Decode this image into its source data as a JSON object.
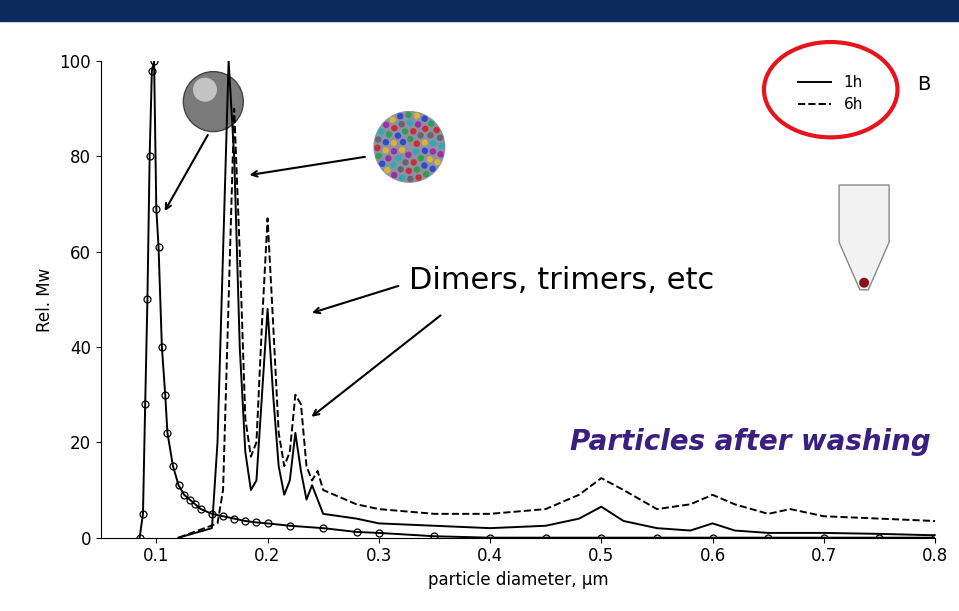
{
  "chart_data": {
    "type": "line",
    "xlabel": "particle diameter, µm",
    "ylabel": "Rel. Mw",
    "xlim": [
      0.05,
      0.8
    ],
    "ylim": [
      0,
      100
    ],
    "xticks": [
      0.1,
      0.2,
      0.3,
      0.4,
      0.5,
      0.6,
      0.7,
      0.8
    ],
    "yticks": [
      0,
      20,
      40,
      60,
      80,
      100
    ],
    "legend": "upper right",
    "annotations": [
      "B",
      "Dimers, trimers, etc",
      "Particles after washing"
    ],
    "series": [
      {
        "name": "1h",
        "color": "#000000",
        "line_style": "solid",
        "x": [
          0.12,
          0.15,
          0.155,
          0.16,
          0.165,
          0.17,
          0.175,
          0.18,
          0.185,
          0.19,
          0.195,
          0.2,
          0.205,
          0.21,
          0.215,
          0.22,
          0.225,
          0.23,
          0.235,
          0.24,
          0.245,
          0.25,
          0.28,
          0.3,
          0.35,
          0.4,
          0.45,
          0.48,
          0.5,
          0.52,
          0.55,
          0.58,
          0.6,
          0.62,
          0.65,
          0.7,
          0.75,
          0.8
        ],
        "values": [
          0,
          2,
          20,
          60,
          100,
          80,
          40,
          18,
          10,
          12,
          30,
          48,
          30,
          15,
          9,
          12,
          22,
          14,
          8,
          11,
          8,
          5,
          4,
          3,
          2.5,
          2,
          2.5,
          4,
          6.5,
          3.5,
          2,
          1.5,
          3,
          1.5,
          1,
          1,
          0.8,
          0.5
        ]
      },
      {
        "name": "6h",
        "color": "#000000",
        "line_style": "dashed",
        "x": [
          0.12,
          0.155,
          0.16,
          0.165,
          0.17,
          0.175,
          0.18,
          0.185,
          0.19,
          0.195,
          0.2,
          0.205,
          0.21,
          0.215,
          0.22,
          0.225,
          0.23,
          0.235,
          0.24,
          0.245,
          0.25,
          0.28,
          0.3,
          0.35,
          0.4,
          0.45,
          0.48,
          0.5,
          0.52,
          0.55,
          0.58,
          0.6,
          0.62,
          0.65,
          0.67,
          0.7,
          0.75,
          0.8
        ],
        "values": [
          0,
          3,
          10,
          50,
          90,
          60,
          25,
          17,
          20,
          45,
          67,
          45,
          22,
          15,
          18,
          30,
          28,
          15,
          12,
          14,
          10,
          7,
          6,
          5,
          5,
          6,
          9,
          12.5,
          10,
          6,
          7,
          9,
          7,
          5,
          6,
          4.5,
          4,
          3.5
        ]
      },
      {
        "color": "#000000",
        "line_style": "solid",
        "marker": "o",
        "x": [
          0.085,
          0.088,
          0.09,
          0.092,
          0.094,
          0.096,
          0.098,
          0.1,
          0.102,
          0.105,
          0.108,
          0.11,
          0.115,
          0.12,
          0.125,
          0.13,
          0.135,
          0.14,
          0.15,
          0.16,
          0.17,
          0.18,
          0.19,
          0.2,
          0.22,
          0.25,
          0.28,
          0.3,
          0.35,
          0.4,
          0.45,
          0.5,
          0.55,
          0.6,
          0.65,
          0.7,
          0.75,
          0.8
        ],
        "values": [
          0,
          5,
          28,
          50,
          80,
          98,
          100,
          69,
          61,
          40,
          30,
          22,
          15,
          11,
          9,
          8,
          7,
          6,
          5,
          4.5,
          4,
          3.5,
          3.2,
          3,
          2.5,
          2,
          1.2,
          1,
          0.3,
          0,
          0,
          0,
          0,
          0,
          0,
          0,
          0,
          0
        ]
      }
    ]
  }
}
